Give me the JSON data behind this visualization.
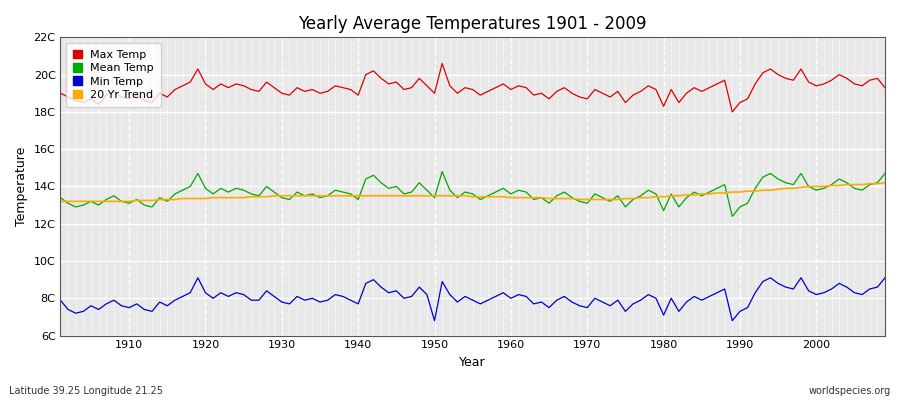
{
  "title": "Yearly Average Temperatures 1901 - 2009",
  "xlabel": "Year",
  "ylabel": "Temperature",
  "lat_label": "Latitude 39.25 Longitude 21.25",
  "watermark": "worldspecies.org",
  "year_start": 1901,
  "year_end": 2009,
  "ylim": [
    6,
    22
  ],
  "yticks": [
    6,
    8,
    10,
    12,
    14,
    16,
    18,
    20,
    22
  ],
  "ytick_labels": [
    "6C",
    "8C",
    "10C",
    "12C",
    "14C",
    "16C",
    "18C",
    "20C",
    "22C"
  ],
  "xticks": [
    1910,
    1920,
    1930,
    1940,
    1950,
    1960,
    1970,
    1980,
    1990,
    2000
  ],
  "fig_bg_color": "#ffffff",
  "plot_bg_color": "#e8e8e8",
  "grid_color": "#ffffff",
  "max_temp_color": "#dd0000",
  "mean_temp_color": "#00aa00",
  "min_temp_color": "#0000cc",
  "trend_color": "#ffaa00",
  "legend_labels": [
    "Max Temp",
    "Mean Temp",
    "Min Temp",
    "20 Yr Trend"
  ],
  "max_temp": [
    19.0,
    18.8,
    18.6,
    18.5,
    18.7,
    18.4,
    18.9,
    19.1,
    18.8,
    18.7,
    18.9,
    18.6,
    18.5,
    19.0,
    18.8,
    19.2,
    19.4,
    19.6,
    20.3,
    19.5,
    19.2,
    19.5,
    19.3,
    19.5,
    19.4,
    19.2,
    19.1,
    19.6,
    19.3,
    19.0,
    18.9,
    19.3,
    19.1,
    19.2,
    19.0,
    19.1,
    19.4,
    19.3,
    19.2,
    18.9,
    20.0,
    20.2,
    19.8,
    19.5,
    19.6,
    19.2,
    19.3,
    19.8,
    19.4,
    19.0,
    20.6,
    19.4,
    19.0,
    19.3,
    19.2,
    18.9,
    19.1,
    19.3,
    19.5,
    19.2,
    19.4,
    19.3,
    18.9,
    19.0,
    18.7,
    19.1,
    19.3,
    19.0,
    18.8,
    18.7,
    19.2,
    19.0,
    18.8,
    19.1,
    18.5,
    18.9,
    19.1,
    19.4,
    19.2,
    18.3,
    19.2,
    18.5,
    19.0,
    19.3,
    19.1,
    19.3,
    19.5,
    19.7,
    18.0,
    18.5,
    18.7,
    19.5,
    20.1,
    20.3,
    20.0,
    19.8,
    19.7,
    20.3,
    19.6,
    19.4,
    19.5,
    19.7,
    20.0,
    19.8,
    19.5,
    19.4,
    19.7,
    19.8,
    19.3
  ],
  "mean_temp": [
    13.4,
    13.1,
    12.9,
    13.0,
    13.2,
    13.0,
    13.3,
    13.5,
    13.2,
    13.1,
    13.3,
    13.0,
    12.9,
    13.4,
    13.2,
    13.6,
    13.8,
    14.0,
    14.7,
    13.9,
    13.6,
    13.9,
    13.7,
    13.9,
    13.8,
    13.6,
    13.5,
    14.0,
    13.7,
    13.4,
    13.3,
    13.7,
    13.5,
    13.6,
    13.4,
    13.5,
    13.8,
    13.7,
    13.6,
    13.3,
    14.4,
    14.6,
    14.2,
    13.9,
    14.0,
    13.6,
    13.7,
    14.2,
    13.8,
    13.4,
    14.8,
    13.8,
    13.4,
    13.7,
    13.6,
    13.3,
    13.5,
    13.7,
    13.9,
    13.6,
    13.8,
    13.7,
    13.3,
    13.4,
    13.1,
    13.5,
    13.7,
    13.4,
    13.2,
    13.1,
    13.6,
    13.4,
    13.2,
    13.5,
    12.9,
    13.3,
    13.5,
    13.8,
    13.6,
    12.7,
    13.6,
    12.9,
    13.4,
    13.7,
    13.5,
    13.7,
    13.9,
    14.1,
    12.4,
    12.9,
    13.1,
    13.9,
    14.5,
    14.7,
    14.4,
    14.2,
    14.1,
    14.7,
    14.0,
    13.8,
    13.9,
    14.1,
    14.4,
    14.2,
    13.9,
    13.8,
    14.1,
    14.2,
    14.7
  ],
  "min_temp": [
    7.9,
    7.4,
    7.2,
    7.3,
    7.6,
    7.4,
    7.7,
    7.9,
    7.6,
    7.5,
    7.7,
    7.4,
    7.3,
    7.8,
    7.6,
    7.9,
    8.1,
    8.3,
    9.1,
    8.3,
    8.0,
    8.3,
    8.1,
    8.3,
    8.2,
    7.9,
    7.9,
    8.4,
    8.1,
    7.8,
    7.7,
    8.1,
    7.9,
    8.0,
    7.8,
    7.9,
    8.2,
    8.1,
    7.9,
    7.7,
    8.8,
    9.0,
    8.6,
    8.3,
    8.4,
    8.0,
    8.1,
    8.6,
    8.2,
    6.8,
    8.9,
    8.2,
    7.8,
    8.1,
    7.9,
    7.7,
    7.9,
    8.1,
    8.3,
    8.0,
    8.2,
    8.1,
    7.7,
    7.8,
    7.5,
    7.9,
    8.1,
    7.8,
    7.6,
    7.5,
    8.0,
    7.8,
    7.6,
    7.9,
    7.3,
    7.7,
    7.9,
    8.2,
    8.0,
    7.1,
    8.0,
    7.3,
    7.8,
    8.1,
    7.9,
    8.1,
    8.3,
    8.5,
    6.8,
    7.3,
    7.5,
    8.3,
    8.9,
    9.1,
    8.8,
    8.6,
    8.5,
    9.1,
    8.4,
    8.2,
    8.3,
    8.5,
    8.8,
    8.6,
    8.3,
    8.2,
    8.5,
    8.6,
    9.1
  ],
  "trend": [
    13.2,
    13.2,
    13.2,
    13.2,
    13.2,
    13.2,
    13.2,
    13.2,
    13.2,
    13.2,
    13.25,
    13.25,
    13.25,
    13.3,
    13.3,
    13.3,
    13.35,
    13.35,
    13.35,
    13.35,
    13.4,
    13.4,
    13.4,
    13.4,
    13.4,
    13.45,
    13.45,
    13.45,
    13.5,
    13.5,
    13.5,
    13.5,
    13.5,
    13.5,
    13.5,
    13.5,
    13.5,
    13.5,
    13.5,
    13.5,
    13.5,
    13.5,
    13.5,
    13.5,
    13.5,
    13.5,
    13.5,
    13.5,
    13.5,
    13.5,
    13.5,
    13.5,
    13.5,
    13.5,
    13.45,
    13.45,
    13.45,
    13.45,
    13.45,
    13.4,
    13.4,
    13.4,
    13.4,
    13.4,
    13.35,
    13.35,
    13.35,
    13.35,
    13.3,
    13.3,
    13.3,
    13.3,
    13.3,
    13.3,
    13.35,
    13.35,
    13.4,
    13.4,
    13.45,
    13.45,
    13.5,
    13.5,
    13.55,
    13.55,
    13.6,
    13.6,
    13.65,
    13.65,
    13.7,
    13.7,
    13.75,
    13.75,
    13.8,
    13.8,
    13.85,
    13.9,
    13.9,
    13.95,
    14.0,
    14.0,
    14.0,
    14.05,
    14.05,
    14.1,
    14.1,
    14.1,
    14.15,
    14.15,
    14.2
  ]
}
